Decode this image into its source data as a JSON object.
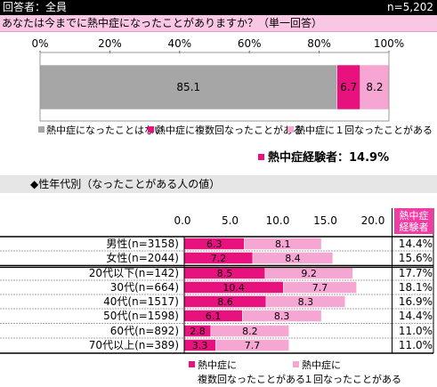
{
  "header": {
    "respondents": "回答者：全員",
    "n": "n=5,202"
  },
  "question": "あなたは今までに熱中症になったことがありますか？（単一回答）",
  "summary": {
    "label": "熱中症経験者：14.9%"
  },
  "section_title": "◆性年代別（なったことがある人の値）",
  "colors": {
    "gray": "#a6a6a6",
    "magenta": "#e8127f",
    "pink": "#f6a6d3",
    "header": "#000000",
    "question_bg": "#f9c6e3",
    "exp_head": "#f03ca3"
  },
  "chart_data": [
    {
      "type": "bar",
      "orientation": "horizontal-stacked",
      "xlim": [
        0,
        100
      ],
      "ticks": [
        "0%",
        "20%",
        "40%",
        "60%",
        "80%",
        "100%"
      ],
      "series": [
        {
          "name": "熱中症になったことはない",
          "values": [
            85.1
          ]
        },
        {
          "name": "熱中症に複数回なったことがある",
          "values": [
            6.7
          ]
        },
        {
          "name": "熱中症に１回なったことがある",
          "values": [
            8.2
          ]
        }
      ]
    },
    {
      "type": "bar",
      "orientation": "horizontal-stacked",
      "xlim": [
        0,
        20
      ],
      "ticks": [
        "0.0",
        "5.0",
        "10.0",
        "15.0",
        "20.0"
      ],
      "categories": [
        "男性(n=3158)",
        "女性(n=2044)",
        "20代以下(n=142)",
        "30代(n=664)",
        "40代(n=1517)",
        "50代(n=1598)",
        "60代(n=892)",
        "70代以上(n=389)"
      ],
      "series": [
        {
          "name": "熱中症に複数回なったことがある",
          "values": [
            6.3,
            7.2,
            8.5,
            10.4,
            8.6,
            6.1,
            2.8,
            3.3
          ]
        },
        {
          "name": "熱中症に１回なったことがある",
          "values": [
            8.1,
            8.4,
            9.2,
            7.7,
            8.3,
            8.3,
            8.2,
            7.7
          ]
        }
      ],
      "experienced_header": "熱中症経験者",
      "experienced": [
        "14.4%",
        "15.6%",
        "17.7%",
        "18.1%",
        "16.9%",
        "14.4%",
        "11.0%",
        "11.0%"
      ],
      "legend": [
        {
          "line1": "熱中症に",
          "line2": "複数回なったことがある"
        },
        {
          "line1": "熱中症に",
          "line2": "１回なったことがある"
        }
      ]
    }
  ]
}
